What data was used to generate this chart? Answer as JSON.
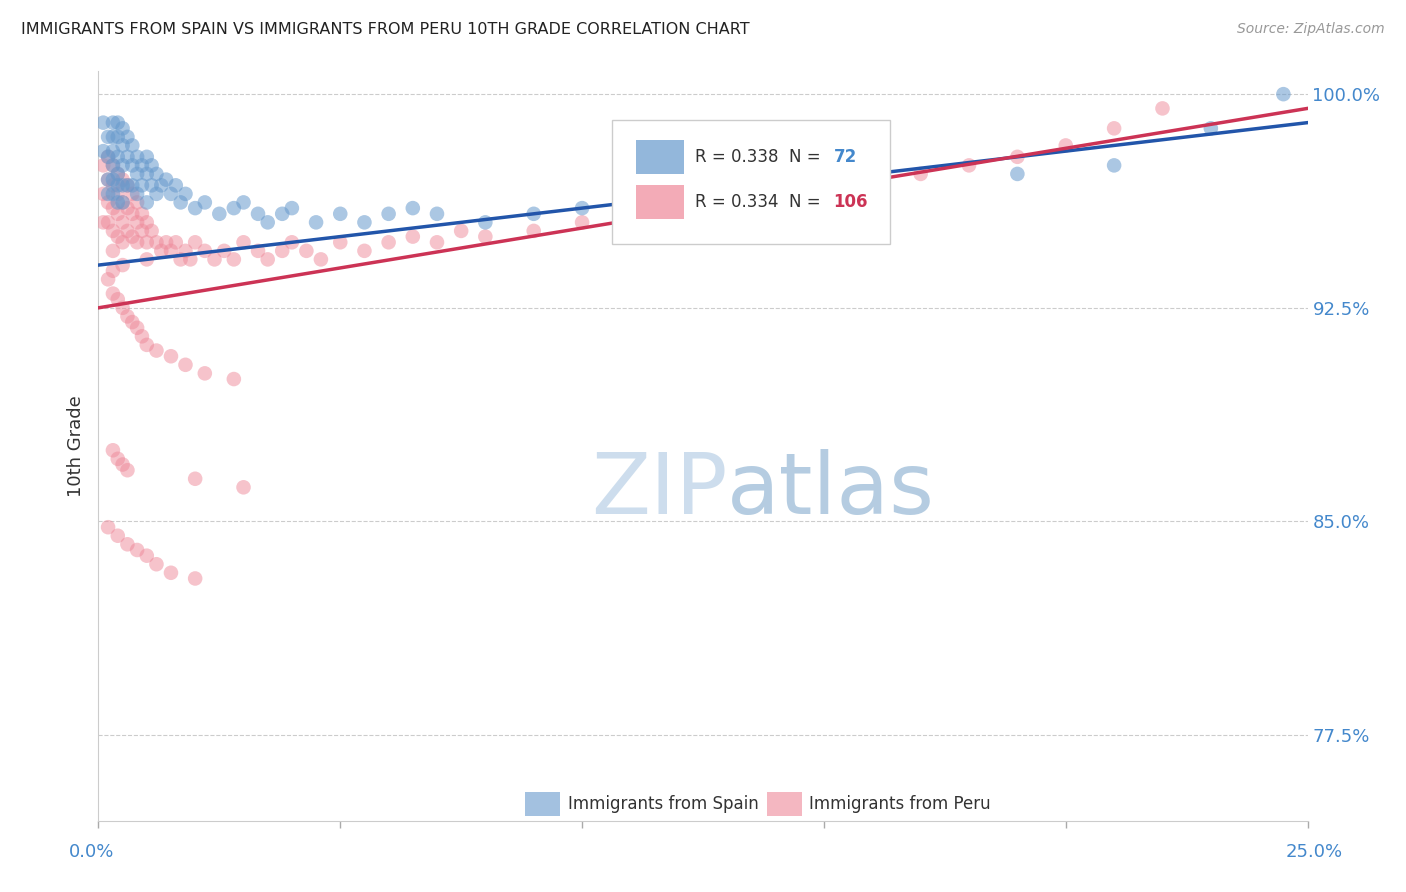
{
  "title": "IMMIGRANTS FROM SPAIN VS IMMIGRANTS FROM PERU 10TH GRADE CORRELATION CHART",
  "source": "Source: ZipAtlas.com",
  "ylabel": "10th Grade",
  "x_min": 0.0,
  "x_max": 0.25,
  "y_min": 0.745,
  "y_max": 1.008,
  "spain_R": 0.338,
  "spain_N": 72,
  "peru_R": 0.334,
  "peru_N": 106,
  "spain_color": "#6699cc",
  "peru_color": "#ee8899",
  "spain_line_color": "#2255aa",
  "peru_line_color": "#cc3355",
  "spain_dot_alpha": 0.55,
  "peru_dot_alpha": 0.5,
  "dot_size": 110,
  "watermark_zip": "ZIP",
  "watermark_atlas": "atlas",
  "watermark_color_zip": "#c8d8e8",
  "watermark_color_atlas": "#b0c8e0",
  "background_color": "#ffffff",
  "grid_color": "#cccccc",
  "axis_label_color": "#4488cc",
  "title_color": "#222222",
  "spain_scatter_x": [
    0.001,
    0.001,
    0.002,
    0.002,
    0.002,
    0.002,
    0.003,
    0.003,
    0.003,
    0.003,
    0.003,
    0.003,
    0.004,
    0.004,
    0.004,
    0.004,
    0.004,
    0.004,
    0.005,
    0.005,
    0.005,
    0.005,
    0.005,
    0.006,
    0.006,
    0.006,
    0.007,
    0.007,
    0.007,
    0.008,
    0.008,
    0.008,
    0.009,
    0.009,
    0.01,
    0.01,
    0.01,
    0.011,
    0.011,
    0.012,
    0.012,
    0.013,
    0.014,
    0.015,
    0.016,
    0.017,
    0.018,
    0.02,
    0.022,
    0.025,
    0.028,
    0.03,
    0.033,
    0.035,
    0.038,
    0.04,
    0.045,
    0.05,
    0.055,
    0.06,
    0.065,
    0.07,
    0.08,
    0.09,
    0.1,
    0.12,
    0.14,
    0.16,
    0.19,
    0.21,
    0.23,
    0.245
  ],
  "spain_scatter_y": [
    0.99,
    0.98,
    0.985,
    0.978,
    0.97,
    0.965,
    0.99,
    0.985,
    0.98,
    0.975,
    0.97,
    0.965,
    0.99,
    0.985,
    0.978,
    0.972,
    0.968,
    0.962,
    0.988,
    0.982,
    0.975,
    0.968,
    0.962,
    0.985,
    0.978,
    0.968,
    0.982,
    0.975,
    0.968,
    0.978,
    0.972,
    0.965,
    0.975,
    0.968,
    0.978,
    0.972,
    0.962,
    0.975,
    0.968,
    0.972,
    0.965,
    0.968,
    0.97,
    0.965,
    0.968,
    0.962,
    0.965,
    0.96,
    0.962,
    0.958,
    0.96,
    0.962,
    0.958,
    0.955,
    0.958,
    0.96,
    0.955,
    0.958,
    0.955,
    0.958,
    0.96,
    0.958,
    0.955,
    0.958,
    0.96,
    0.962,
    0.965,
    0.968,
    0.972,
    0.975,
    0.988,
    1.0
  ],
  "peru_scatter_x": [
    0.001,
    0.001,
    0.001,
    0.002,
    0.002,
    0.002,
    0.002,
    0.003,
    0.003,
    0.003,
    0.003,
    0.003,
    0.003,
    0.004,
    0.004,
    0.004,
    0.004,
    0.005,
    0.005,
    0.005,
    0.005,
    0.005,
    0.006,
    0.006,
    0.006,
    0.007,
    0.007,
    0.007,
    0.008,
    0.008,
    0.008,
    0.009,
    0.009,
    0.01,
    0.01,
    0.01,
    0.011,
    0.012,
    0.013,
    0.014,
    0.015,
    0.016,
    0.017,
    0.018,
    0.019,
    0.02,
    0.022,
    0.024,
    0.026,
    0.028,
    0.03,
    0.033,
    0.035,
    0.038,
    0.04,
    0.043,
    0.046,
    0.05,
    0.055,
    0.06,
    0.065,
    0.07,
    0.075,
    0.08,
    0.09,
    0.1,
    0.11,
    0.12,
    0.13,
    0.14,
    0.15,
    0.16,
    0.17,
    0.18,
    0.19,
    0.2,
    0.21,
    0.22,
    0.002,
    0.003,
    0.004,
    0.005,
    0.006,
    0.007,
    0.008,
    0.009,
    0.01,
    0.012,
    0.015,
    0.018,
    0.022,
    0.028,
    0.003,
    0.004,
    0.005,
    0.006,
    0.02,
    0.03,
    0.002,
    0.004,
    0.006,
    0.008,
    0.01,
    0.012,
    0.015,
    0.02
  ],
  "peru_scatter_y": [
    0.975,
    0.965,
    0.955,
    0.978,
    0.97,
    0.962,
    0.955,
    0.975,
    0.968,
    0.96,
    0.952,
    0.945,
    0.938,
    0.972,
    0.965,
    0.958,
    0.95,
    0.97,
    0.962,
    0.955,
    0.948,
    0.94,
    0.968,
    0.96,
    0.952,
    0.965,
    0.958,
    0.95,
    0.962,
    0.955,
    0.948,
    0.958,
    0.952,
    0.955,
    0.948,
    0.942,
    0.952,
    0.948,
    0.945,
    0.948,
    0.945,
    0.948,
    0.942,
    0.945,
    0.942,
    0.948,
    0.945,
    0.942,
    0.945,
    0.942,
    0.948,
    0.945,
    0.942,
    0.945,
    0.948,
    0.945,
    0.942,
    0.948,
    0.945,
    0.948,
    0.95,
    0.948,
    0.952,
    0.95,
    0.952,
    0.955,
    0.958,
    0.96,
    0.962,
    0.965,
    0.968,
    0.97,
    0.972,
    0.975,
    0.978,
    0.982,
    0.988,
    0.995,
    0.935,
    0.93,
    0.928,
    0.925,
    0.922,
    0.92,
    0.918,
    0.915,
    0.912,
    0.91,
    0.908,
    0.905,
    0.902,
    0.9,
    0.875,
    0.872,
    0.87,
    0.868,
    0.865,
    0.862,
    0.848,
    0.845,
    0.842,
    0.84,
    0.838,
    0.835,
    0.832,
    0.83
  ],
  "spain_trendline_x": [
    0.0,
    0.25
  ],
  "spain_trendline_y": [
    0.94,
    0.99
  ],
  "peru_trendline_x": [
    0.0,
    0.25
  ],
  "peru_trendline_y": [
    0.925,
    0.995
  ]
}
